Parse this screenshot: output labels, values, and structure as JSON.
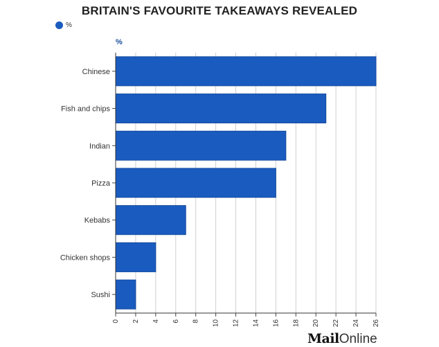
{
  "chart_data": {
    "type": "bar",
    "orientation": "horizontal",
    "title": "BRITAIN'S FAVOURITE TAKEAWAYS REVEALED",
    "legend": {
      "label": "%",
      "color": "#1a5bbf",
      "placement": "top-left"
    },
    "xlabel": "",
    "ylabel": "%",
    "xlim": [
      0,
      26
    ],
    "xticks": [
      0,
      2,
      4,
      6,
      8,
      10,
      12,
      14,
      16,
      18,
      20,
      22,
      24,
      26
    ],
    "grid": true,
    "categories": [
      "Chinese",
      "Fish and chips",
      "Indian",
      "Pizza",
      "Kebabs",
      "Chicken shops",
      "Sushi"
    ],
    "series": [
      {
        "name": "%",
        "values": [
          26,
          21,
          17,
          16,
          7,
          4,
          2
        ]
      }
    ],
    "bar_color": "#1a5bbf",
    "bar_border": "#144a9e"
  },
  "branding": {
    "part1": "Mail",
    "part2": "Online"
  }
}
